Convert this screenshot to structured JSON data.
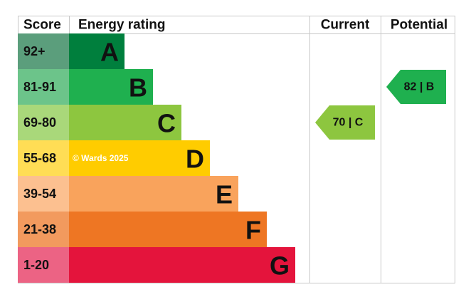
{
  "header": {
    "score": "Score",
    "rating": "Energy rating",
    "current": "Current",
    "potential": "Potential"
  },
  "bands": [
    {
      "score": "92+",
      "letter": "A"
    },
    {
      "score": "81-91",
      "letter": "B"
    },
    {
      "score": "69-80",
      "letter": "C"
    },
    {
      "score": "55-68",
      "letter": "D"
    },
    {
      "score": "39-54",
      "letter": "E"
    },
    {
      "score": "21-38",
      "letter": "F"
    },
    {
      "score": "1-20",
      "letter": "G"
    }
  ],
  "current": {
    "label": "70 | C"
  },
  "potential": {
    "label": "82 | B"
  },
  "watermark": "© Wards 2025"
}
